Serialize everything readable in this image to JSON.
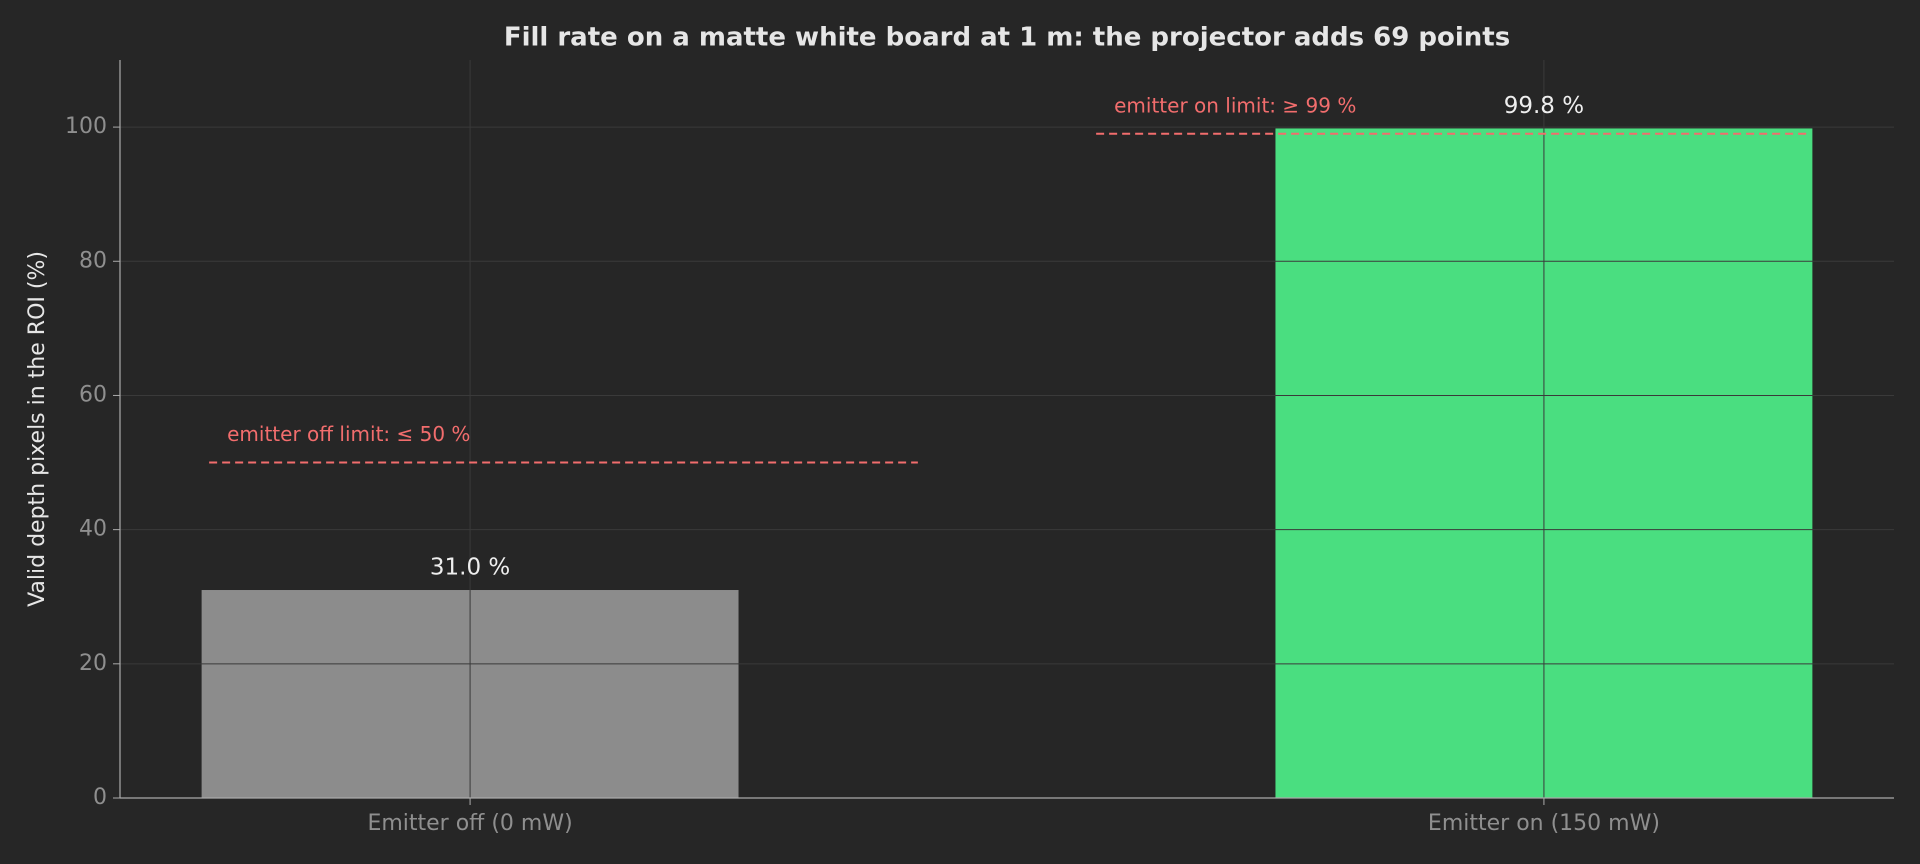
{
  "chart_data": {
    "type": "bar",
    "title": "Fill rate on a matte white board at 1 m: the projector adds 69 points",
    "ylabel": "Valid depth pixels in the ROI (%)",
    "categories": [
      "Emitter off (0 mW)",
      "Emitter on (150 mW)"
    ],
    "values": [
      31.0,
      99.8
    ],
    "value_labels": [
      "31.0 %",
      "99.8 %"
    ],
    "colors": [
      "#8c8c8c",
      "#4ade80"
    ],
    "ylim": [
      0,
      110
    ],
    "yticks": [
      0,
      20,
      40,
      60,
      80,
      100
    ],
    "grid": true,
    "thresholds": [
      {
        "value": 50,
        "label": "emitter off limit: ≤ 50 %",
        "color": "#f26d6d"
      },
      {
        "value": 99,
        "label": "emitter on limit: ≥ 99 %",
        "color": "#f26d6d"
      }
    ]
  }
}
